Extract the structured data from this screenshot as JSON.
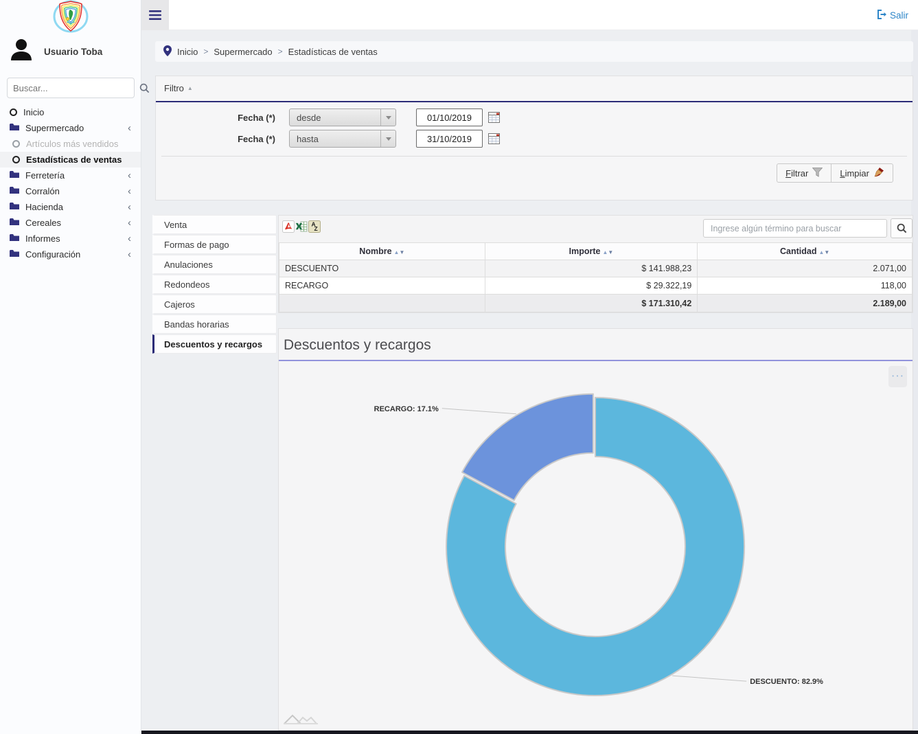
{
  "topbar": {
    "logout_label": "Salir"
  },
  "breadcrumb": {
    "items": [
      "Inicio",
      "Supermercado",
      "Estadísticas de ventas"
    ],
    "separator": ">"
  },
  "sidebar": {
    "user_name": "Usuario Toba",
    "search_placeholder": "Buscar...",
    "items": [
      {
        "label": "Inicio"
      },
      {
        "label": "Supermercado"
      },
      {
        "label": "Artículos más vendidos"
      },
      {
        "label": "Estadísticas de ventas"
      },
      {
        "label": "Ferretería"
      },
      {
        "label": "Corralón"
      },
      {
        "label": "Hacienda"
      },
      {
        "label": "Cereales"
      },
      {
        "label": "Informes"
      },
      {
        "label": "Configuración"
      }
    ]
  },
  "filter": {
    "title": "Filtro",
    "rows": [
      {
        "label": "Fecha (*)",
        "select_value": "desde",
        "date_value": "01/10/2019"
      },
      {
        "label": "Fecha (*)",
        "select_value": "hasta",
        "date_value": "31/10/2019"
      }
    ],
    "buttons": {
      "filtrar": "Filtrar",
      "limpiar": "Limpiar"
    }
  },
  "tabs": {
    "items": [
      "Venta",
      "Formas de pago",
      "Anulaciones",
      "Redondeos",
      "Cajeros",
      "Bandas horarias",
      "Descuentos y recargos"
    ],
    "active": "Descuentos y recargos"
  },
  "table": {
    "search_placeholder": "Ingrese algún término para buscar",
    "columns": [
      "Nombre",
      "Importe",
      "Cantidad"
    ],
    "rows": [
      {
        "nombre": "DESCUENTO",
        "importe": "$ 141.988,23",
        "cantidad": "2.071,00"
      },
      {
        "nombre": "RECARGO",
        "importe": "$ 29.322,19",
        "cantidad": "118,00"
      }
    ],
    "total": {
      "importe": "$ 171.310,42",
      "cantidad": "2.189,00"
    }
  },
  "chart_data": {
    "type": "pie",
    "subtype": "donut",
    "title": "Descuentos y recargos",
    "slices": [
      {
        "name": "DESCUENTO",
        "value": 141988.23,
        "percent": 82.9,
        "label_text": "DESCUENTO: 82.9%",
        "color": "#5cb7dd",
        "explode": 0
      },
      {
        "name": "RECARGO",
        "value": 29322.19,
        "percent": 17.1,
        "label_text": "RECARGO: 17.1%",
        "color": "#6c93dc",
        "explode": 6
      }
    ],
    "total_value": 171310.42,
    "start_angle_deg": 0,
    "direction": "clockwise",
    "legend_position": "none"
  },
  "icons": {
    "chevron_left": "‹",
    "collapse_triangle": "▲",
    "sort_asc": "▲",
    "sort_desc": "▼",
    "menu_dots": "• • •"
  },
  "colors": {
    "accent_navy": "#2c2c78",
    "link_blue": "#2e86c8",
    "descuento": "#5cb7dd",
    "recargo": "#6c93dc"
  }
}
